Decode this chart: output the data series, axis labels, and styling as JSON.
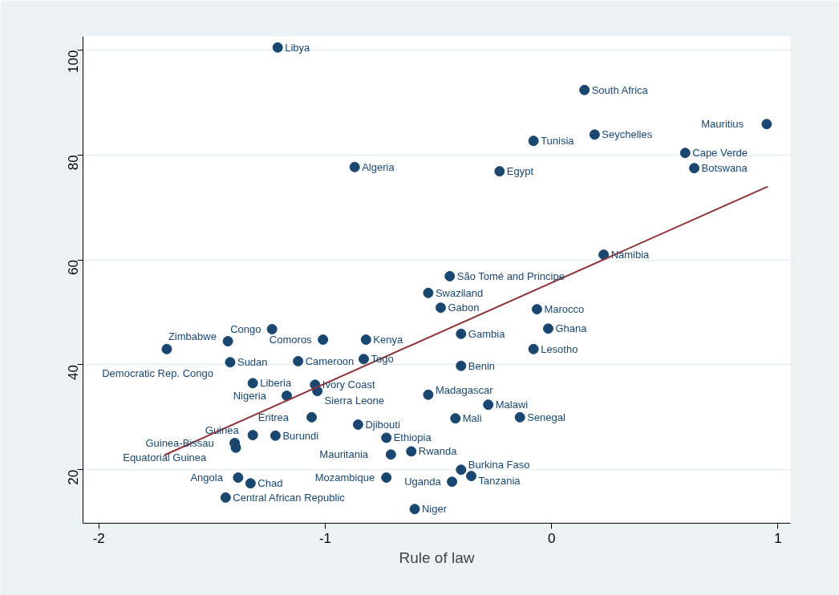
{
  "chart_data": {
    "type": "scatter",
    "xlabel": "Rule of law",
    "xlim": [
      -2.07,
      1.055
    ],
    "ylim": [
      9.8,
      102.6
    ],
    "xticks": [
      -2,
      -1,
      0,
      1
    ],
    "yticks": [
      20,
      40,
      60,
      80,
      100
    ],
    "grid": "y",
    "series": [
      {
        "marker": "circle",
        "color": "#1a476f",
        "x": [
          -1.21,
          0.145,
          0.95,
          0.19,
          -0.08,
          0.59,
          -0.87,
          -0.23,
          0.63,
          0.23,
          -0.45,
          -0.545,
          -0.49,
          -0.065,
          -0.015,
          -0.4,
          -0.08,
          -0.4,
          -0.545,
          -0.28,
          -0.425,
          -0.14,
          -0.73,
          -0.62,
          -0.71,
          -0.4,
          -0.355,
          -0.44,
          -0.73,
          -0.605,
          -1.235,
          -1.43,
          -1.01,
          -0.82,
          -1.7,
          -1.42,
          -1.12,
          -0.83,
          -1.32,
          -1.045,
          -1.035,
          -1.17,
          -1.06,
          -0.855,
          -1.32,
          -1.22,
          -1.4,
          -1.395,
          -1.385,
          -1.33,
          -1.44
        ],
        "values": [
          100.5,
          92.4,
          85.9,
          83.9,
          82.7,
          80.4,
          77.7,
          76.9,
          77.5,
          61.0,
          56.9,
          53.7,
          50.9,
          50.6,
          46.9,
          45.9,
          43.0,
          39.8,
          34.3,
          32.4,
          29.8,
          30.0,
          26.1,
          23.5,
          22.9,
          20.0,
          18.8,
          17.7,
          18.5,
          12.5,
          46.8,
          44.5,
          44.8,
          44.8,
          43.0,
          40.5,
          40.7,
          41.1,
          36.5,
          36.2,
          35.0,
          34.1,
          30.0,
          28.6,
          26.6,
          26.5,
          25.1,
          24.2,
          18.5,
          17.4,
          14.7
        ]
      },
      {
        "type": "line",
        "color": "#90353b",
        "line_style": "solid",
        "x": [
          -1.71,
          0.955
        ],
        "values": [
          22.8,
          74.0
        ]
      }
    ],
    "annotations": [
      {
        "text": "Libya",
        "x": -1.21,
        "y": 100.5
      },
      {
        "text": "South Africa",
        "x": 0.145,
        "y": 92.4
      },
      {
        "text": "Mauritius",
        "x": 0.95,
        "y": 85.9
      },
      {
        "text": "Seychelles",
        "x": 0.19,
        "y": 83.9
      },
      {
        "text": "Tunisia",
        "x": -0.08,
        "y": 82.7
      },
      {
        "text": "Cape  Verde",
        "x": 0.59,
        "y": 80.4
      },
      {
        "text": "Algeria",
        "x": -0.87,
        "y": 77.7
      },
      {
        "text": "Egypt",
        "x": -0.23,
        "y": 76.9
      },
      {
        "text": "Botswana",
        "x": 0.63,
        "y": 77.5
      },
      {
        "text": "Namibia",
        "x": 0.23,
        "y": 61.0
      },
      {
        "text": "São Tomé and Principe",
        "x": -0.45,
        "y": 56.9
      },
      {
        "text": "Swaziland",
        "x": -0.545,
        "y": 53.7
      },
      {
        "text": "Gabon",
        "x": -0.49,
        "y": 50.9
      },
      {
        "text": "Marocco",
        "x": -0.065,
        "y": 50.6
      },
      {
        "text": "Ghana",
        "x": -0.015,
        "y": 46.9
      },
      {
        "text": "Gambia",
        "x": -0.4,
        "y": 45.9
      },
      {
        "text": "Lesotho",
        "x": -0.08,
        "y": 43.0
      },
      {
        "text": "Benin",
        "x": -0.4,
        "y": 39.8
      },
      {
        "text": "Madagascar",
        "x": -0.545,
        "y": 34.3
      },
      {
        "text": "Malawi",
        "x": -0.28,
        "y": 32.4
      },
      {
        "text": "Mali",
        "x": -0.425,
        "y": 29.8
      },
      {
        "text": "Senegal",
        "x": -0.14,
        "y": 30.0
      },
      {
        "text": "Ethiopia",
        "x": -0.73,
        "y": 26.1
      },
      {
        "text": "Rwanda",
        "x": -0.62,
        "y": 23.5
      },
      {
        "text": "Mauritania",
        "x": -0.71,
        "y": 22.9
      },
      {
        "text": "Burkina Faso",
        "x": -0.4,
        "y": 20.0
      },
      {
        "text": "Tanzania",
        "x": -0.355,
        "y": 18.8
      },
      {
        "text": "Uganda",
        "x": -0.44,
        "y": 17.7
      },
      {
        "text": "Mozambique",
        "x": -0.73,
        "y": 18.5
      },
      {
        "text": "Niger",
        "x": -0.605,
        "y": 12.5
      },
      {
        "text": "Congo",
        "x": -1.235,
        "y": 46.8
      },
      {
        "text": "Zimbabwe",
        "x": -1.43,
        "y": 44.5
      },
      {
        "text": "Comoros",
        "x": -1.01,
        "y": 44.8
      },
      {
        "text": "Kenya",
        "x": -0.82,
        "y": 44.8
      },
      {
        "text": "Democratic Rep. Congo",
        "x": -1.7,
        "y": 43.0
      },
      {
        "text": "Sudan",
        "x": -1.42,
        "y": 40.5
      },
      {
        "text": "Cameroon",
        "x": -1.12,
        "y": 40.7
      },
      {
        "text": "Togo",
        "x": -0.83,
        "y": 41.1
      },
      {
        "text": "Liberia",
        "x": -1.32,
        "y": 36.5
      },
      {
        "text": "Ivory Coast",
        "x": -1.045,
        "y": 36.2
      },
      {
        "text": "Sierra Leone",
        "x": -1.035,
        "y": 35.0
      },
      {
        "text": "Nigeria",
        "x": -1.17,
        "y": 34.1
      },
      {
        "text": "Eritrea",
        "x": -1.06,
        "y": 30.0
      },
      {
        "text": "Djibouti",
        "x": -0.855,
        "y": 28.6
      },
      {
        "text": "Guinea",
        "x": -1.32,
        "y": 26.6
      },
      {
        "text": "Burundi",
        "x": -1.22,
        "y": 26.5
      },
      {
        "text": "Guinea-Bissau",
        "x": -1.4,
        "y": 25.1
      },
      {
        "text": "Equatorial Guinea",
        "x": -1.395,
        "y": 24.2
      },
      {
        "text": "Angola",
        "x": -1.385,
        "y": 18.5
      },
      {
        "text": "Chad",
        "x": -1.33,
        "y": 17.4
      },
      {
        "text": "Central African Republic",
        "x": -1.44,
        "y": 14.7
      }
    ]
  }
}
